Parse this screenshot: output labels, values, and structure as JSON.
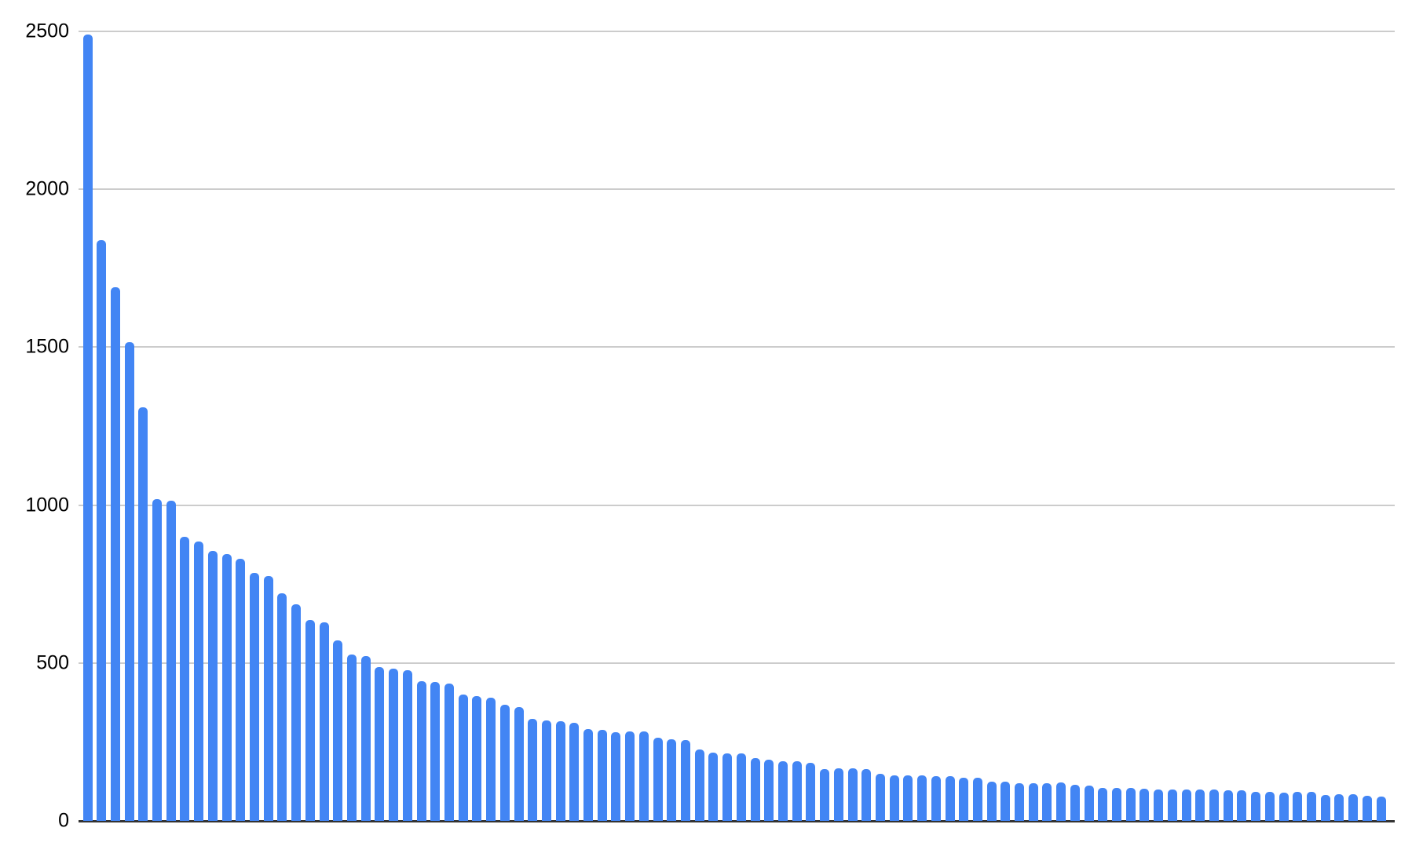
{
  "chart_data": {
    "type": "bar",
    "title": "",
    "xlabel": "",
    "ylabel": "",
    "legend": "none",
    "grid": true,
    "x_tick_labels": [],
    "x_axis_labeled": false,
    "num_bars": 94,
    "values": [
      2490,
      1840,
      1690,
      1515,
      1310,
      1020,
      1015,
      900,
      885,
      855,
      845,
      830,
      785,
      775,
      720,
      685,
      636,
      628,
      572,
      526,
      521,
      488,
      483,
      478,
      442,
      440,
      435,
      400,
      395,
      391,
      368,
      360,
      324,
      318,
      315,
      310,
      290,
      288,
      282,
      284,
      283,
      263,
      258,
      256,
      225,
      215,
      214,
      213,
      200,
      195,
      190,
      189,
      185,
      165,
      166,
      166,
      164,
      150,
      144,
      144,
      143,
      142,
      142,
      137,
      136,
      125,
      124,
      120,
      120,
      120,
      121,
      114,
      111,
      105,
      104,
      104,
      102,
      100,
      99,
      99,
      99,
      99,
      98,
      96,
      91,
      91,
      90,
      91,
      91,
      83,
      85,
      84,
      79,
      78
    ],
    "ylim": [
      0,
      2500
    ],
    "yticks": [
      2500,
      2000,
      1500,
      1000,
      500,
      0
    ],
    "ytick_labels": [
      "2500",
      "2000",
      "1500",
      "1000",
      "500",
      "0"
    ],
    "colors": {
      "bar": "#4285f4",
      "gridline": "#cccccc",
      "axis_line": "#333333",
      "tick_label": "#000000",
      "background": "#ffffff"
    }
  }
}
